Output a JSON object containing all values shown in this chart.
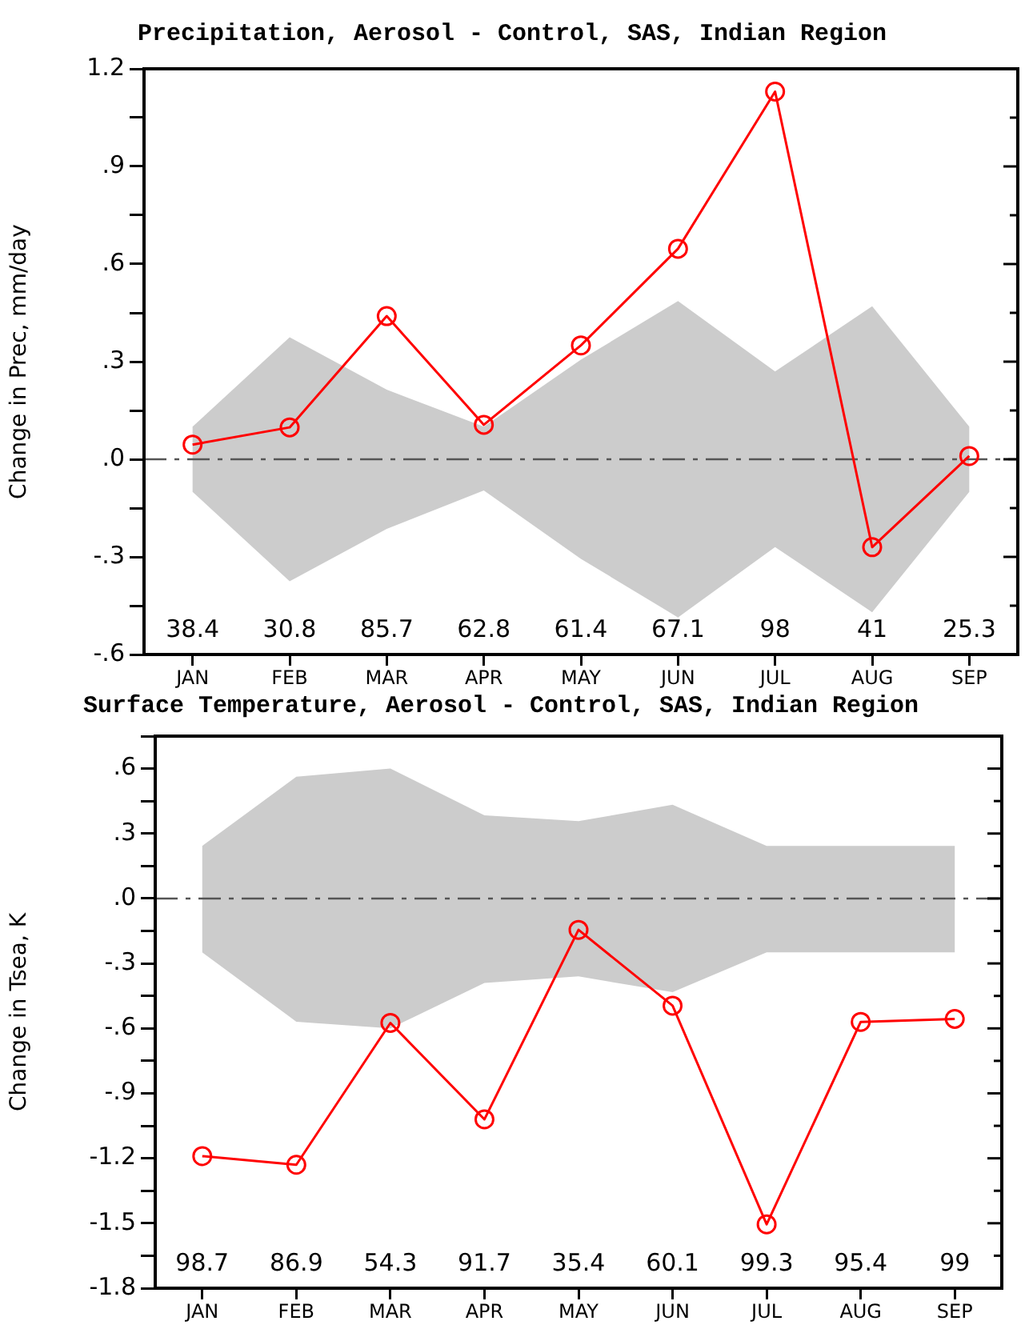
{
  "chart_data": [
    {
      "type": "line",
      "title": "Precipitation, Aerosol - Control, SAS, Indian Region",
      "ylabel": "Change in Prec, mm/day",
      "categories": [
        "JAN",
        "FEB",
        "MAR",
        "APR",
        "MAY",
        "JUN",
        "JUL",
        "AUG",
        "SEP"
      ],
      "series": [
        {
          "color": "#ff0000",
          "values": [
            0.045,
            0.098,
            0.44,
            0.106,
            0.35,
            0.647,
            1.13,
            -0.27,
            0.01
          ],
          "lower": [
            -0.1,
            -0.375,
            -0.214,
            -0.096,
            -0.306,
            -0.486,
            -0.27,
            -0.47,
            -0.1
          ],
          "upper": [
            0.1,
            0.375,
            0.214,
            0.1,
            0.306,
            0.486,
            0.27,
            0.47,
            0.1
          ]
        }
      ],
      "ylim": [
        -0.6,
        1.2
      ],
      "yticks": [
        {
          "value": -0.6,
          "label": "-.6"
        },
        {
          "value": -0.45,
          "label": null
        },
        {
          "value": -0.3,
          "label": "-.3"
        },
        {
          "value": -0.15,
          "label": null
        },
        {
          "value": 0,
          "label": ".0"
        },
        {
          "value": 0.15,
          "label": null
        },
        {
          "value": 0.3,
          "label": ".3"
        },
        {
          "value": 0.45,
          "label": null
        },
        {
          "value": 0.6,
          "label": ".6"
        },
        {
          "value": 0.75,
          "label": null
        },
        {
          "value": 0.9,
          "label": ".9"
        },
        {
          "value": 1.05,
          "label": null
        },
        1.2
      ],
      "ref_lines": [
        {
          "axis": "y",
          "value": 0,
          "color": "#555555",
          "line_style": "dashed"
        }
      ],
      "annotations": [
        "38.4",
        "30.8",
        "85.7",
        "62.8",
        "61.4",
        "67.1",
        "98",
        "41",
        "25.3"
      ],
      "marker": "circle",
      "line_style": "solid",
      "grid": false,
      "legend": false
    },
    {
      "type": "line",
      "title": "Surface Temperature, Aerosol - Control, SAS, Indian Region",
      "ylabel": "Change in Tsea, K",
      "categories": [
        "JAN",
        "FEB",
        "MAR",
        "APR",
        "MAY",
        "JUN",
        "JUL",
        "AUG",
        "SEP"
      ],
      "series": [
        {
          "color": "#ff0000",
          "values": [
            -1.19,
            -1.23,
            -0.575,
            -1.02,
            -0.145,
            -0.495,
            -1.505,
            -0.57,
            -0.556
          ],
          "lower": [
            -0.249,
            -0.569,
            -0.6,
            -0.39,
            -0.36,
            -0.433,
            -0.249,
            -0.249,
            -0.249
          ],
          "upper": [
            0.243,
            0.562,
            0.6,
            0.384,
            0.357,
            0.433,
            0.243,
            0.243,
            0.243
          ]
        }
      ],
      "ylim": [
        -1.8,
        0.75
      ],
      "yticks": [
        {
          "value": -1.8,
          "label": "-1.8"
        },
        {
          "value": -1.65,
          "label": null
        },
        {
          "value": -1.5,
          "label": "-1.5"
        },
        {
          "value": -1.35,
          "label": null
        },
        {
          "value": -1.2,
          "label": "-1.2"
        },
        {
          "value": -1.05,
          "label": null
        },
        {
          "value": -0.9,
          "label": "-.9"
        },
        {
          "value": -0.75,
          "label": null
        },
        {
          "value": -0.6,
          "label": "-.6"
        },
        {
          "value": -0.45,
          "label": null
        },
        {
          "value": -0.3,
          "label": "-.3"
        },
        {
          "value": -0.15,
          "label": null
        },
        {
          "value": 0,
          "label": ".0"
        },
        {
          "value": 0.15,
          "label": null
        },
        {
          "value": 0.3,
          "label": ".3"
        },
        {
          "value": 0.45,
          "label": null
        },
        {
          "value": 0.6,
          "label": ".6"
        },
        {
          "value": 0.75,
          "label": null
        }
      ],
      "ref_lines": [
        {
          "axis": "y",
          "value": 0,
          "color": "#555555",
          "line_style": "dashed"
        }
      ],
      "annotations": [
        "98.7",
        "86.9",
        "54.3",
        "91.7",
        "35.4",
        "60.1",
        "99.3",
        "95.4",
        "99"
      ],
      "marker": "circle",
      "line_style": "solid",
      "grid": false,
      "legend": false
    }
  ]
}
